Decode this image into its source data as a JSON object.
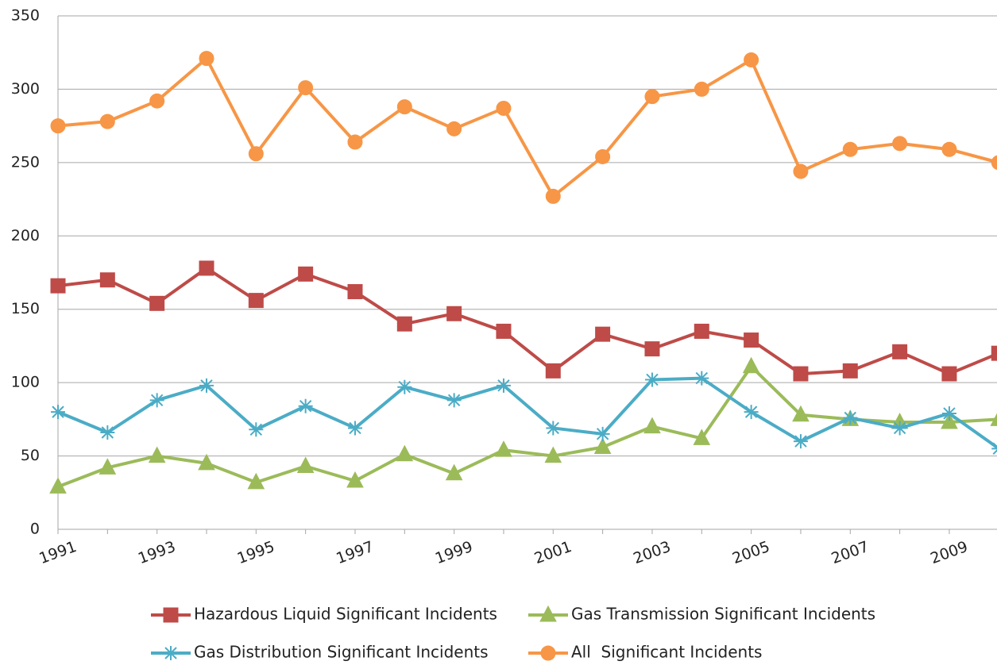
{
  "chart_data": {
    "type": "line",
    "categories": [
      "1991",
      null,
      "1993",
      null,
      "1995",
      null,
      "1997",
      null,
      "1999",
      null,
      "2001",
      null,
      "2003",
      null,
      "2005",
      null,
      "2007",
      null,
      "2009",
      null
    ],
    "series": [
      {
        "name": "Hazardous Liquid Significant Incidents",
        "color": "#be4b48",
        "marker": "square",
        "values": [
          166,
          170,
          154,
          178,
          156,
          174,
          162,
          140,
          147,
          135,
          108,
          133,
          123,
          135,
          129,
          106,
          108,
          121,
          106,
          120
        ]
      },
      {
        "name": "Gas Transmission Significant Incidents",
        "color": "#9bbb59",
        "marker": "triangle",
        "values": [
          29,
          42,
          50,
          45,
          32,
          43,
          33,
          51,
          38,
          54,
          50,
          56,
          70,
          62,
          111,
          78,
          75,
          73,
          73,
          75
        ]
      },
      {
        "name": "Gas Distribution Significant Incidents",
        "color": "#4bacc6",
        "marker": "star",
        "values": [
          80,
          66,
          88,
          98,
          68,
          84,
          69,
          97,
          88,
          98,
          69,
          65,
          102,
          103,
          80,
          60,
          76,
          69,
          79,
          55
        ]
      },
      {
        "name": "All  Significant Incidents",
        "color": "#f79646",
        "marker": "circle",
        "values": [
          275,
          278,
          292,
          321,
          256,
          301,
          264,
          288,
          273,
          287,
          227,
          254,
          295,
          300,
          320,
          244,
          259,
          263,
          259,
          250
        ]
      }
    ],
    "ylim": [
      0,
      350
    ],
    "yticks": [
      0,
      50,
      100,
      150,
      200,
      250,
      300,
      350
    ],
    "grid": true
  }
}
